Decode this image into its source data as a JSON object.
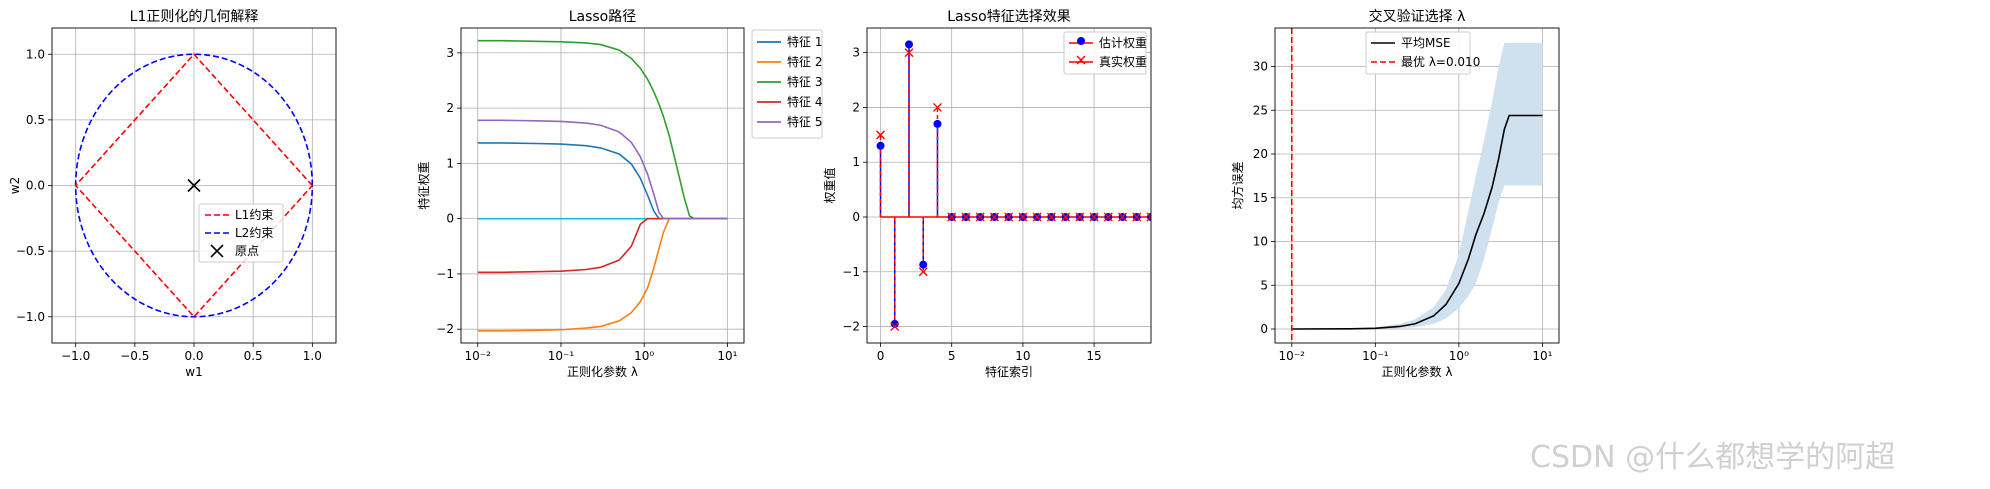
{
  "colors": {
    "tab_blue": "#1f77b4",
    "tab_orange": "#ff7f0e",
    "tab_green": "#2ca02c",
    "tab_red": "#d62728",
    "tab_purple": "#9467bd",
    "tab_cyan": "#17becf",
    "red": "#ff0000",
    "blue": "#0000ff",
    "black": "#000000",
    "band": "#cfe0ee",
    "grid": "#b0b0b0"
  },
  "watermark": "CSDN @什么都想学的阿超",
  "chart_data": [
    {
      "type": "line",
      "title": "L1正则化的几何解释",
      "xlabel": "w1",
      "ylabel": "w2",
      "xlim": [
        -1.2,
        1.2
      ],
      "ylim": [
        -1.2,
        1.2
      ],
      "xticks": [
        -1.0,
        -0.5,
        0.0,
        0.5,
        1.0
      ],
      "xtick_labels": [
        "−1.0",
        "−0.5",
        "0.0",
        "0.5",
        "1.0"
      ],
      "yticks": [
        -1.0,
        -0.5,
        0.0,
        0.5,
        1.0
      ],
      "ytick_labels": [
        "−1.0",
        "−0.5",
        "0.0",
        "0.5",
        "1.0"
      ],
      "grid": true,
      "legend": "center",
      "series": [
        {
          "name": "L1约束",
          "style": "dashed",
          "color": "#ff0000",
          "shape": "diamond",
          "radius": 1.0
        },
        {
          "name": "L2约束",
          "style": "dashed",
          "color": "#0000ff",
          "shape": "circle",
          "radius": 1.0
        },
        {
          "name": "原点",
          "style": "marker-x",
          "color": "#000000",
          "x": [
            0
          ],
          "y": [
            0
          ]
        }
      ]
    },
    {
      "type": "line",
      "title": "Lasso路径",
      "xlabel": "正则化参数 λ",
      "ylabel": "特征权重",
      "xscale": "log",
      "xlim": [
        0.0063,
        15.8
      ],
      "ylim": [
        -2.25,
        3.45
      ],
      "xticks": [
        0.01,
        0.1,
        1,
        10
      ],
      "xtick_labels": [
        "10⁻²",
        "10⁻¹",
        "10⁰",
        "10¹"
      ],
      "yticks": [
        -2,
        -1,
        0,
        1,
        2,
        3
      ],
      "ytick_labels": [
        "−2",
        "−1",
        "0",
        "1",
        "2",
        "3"
      ],
      "grid": true,
      "legend": "upper-right outside",
      "x": [
        0.01,
        0.02,
        0.05,
        0.1,
        0.2,
        0.3,
        0.5,
        0.7,
        0.9,
        1.1,
        1.3,
        1.5,
        1.7,
        2.0,
        2.5,
        3.0,
        3.5,
        4.0,
        5.0,
        7.0,
        10.0
      ],
      "series": [
        {
          "name": "特征 1",
          "color": "#1f77b4",
          "values": [
            1.37,
            1.37,
            1.36,
            1.35,
            1.32,
            1.28,
            1.17,
            0.99,
            0.73,
            0.42,
            0.14,
            0,
            0,
            0,
            0,
            0,
            0,
            0,
            0,
            0,
            0
          ]
        },
        {
          "name": "特征 2",
          "color": "#ff7f0e",
          "values": [
            -2.03,
            -2.03,
            -2.02,
            -2.01,
            -1.98,
            -1.95,
            -1.85,
            -1.7,
            -1.5,
            -1.25,
            -0.9,
            -0.55,
            -0.25,
            0,
            0,
            0,
            0,
            0,
            0,
            0,
            0
          ]
        },
        {
          "name": "特征 3",
          "color": "#2ca02c",
          "values": [
            3.22,
            3.22,
            3.21,
            3.2,
            3.18,
            3.15,
            3.05,
            2.9,
            2.72,
            2.52,
            2.3,
            2.08,
            1.85,
            1.5,
            0.9,
            0.4,
            0.05,
            0,
            0,
            0,
            0
          ]
        },
        {
          "name": "特征 4",
          "color": "#d62728",
          "values": [
            -0.97,
            -0.97,
            -0.96,
            -0.95,
            -0.92,
            -0.88,
            -0.75,
            -0.5,
            -0.1,
            0,
            0,
            0,
            0,
            0,
            0,
            0,
            0,
            0,
            0,
            0,
            0
          ]
        },
        {
          "name": "特征 5",
          "color": "#9467bd",
          "values": [
            1.78,
            1.78,
            1.77,
            1.76,
            1.73,
            1.69,
            1.57,
            1.38,
            1.12,
            0.8,
            0.45,
            0.12,
            0,
            0,
            0,
            0,
            0,
            0,
            0,
            0,
            0
          ]
        }
      ],
      "other_features_zero_color": "#17becf"
    },
    {
      "type": "stem",
      "title": "Lasso特征选择效果",
      "xlabel": "特征索引",
      "ylabel": "权重值",
      "xlim": [
        -0.95,
        19.0
      ],
      "ylim": [
        -2.3,
        3.45
      ],
      "xticks": [
        0,
        5,
        10,
        15
      ],
      "xtick_labels": [
        "0",
        "5",
        "10",
        "15"
      ],
      "yticks": [
        -2,
        -1,
        0,
        1,
        2,
        3
      ],
      "ytick_labels": [
        "−2",
        "−1",
        "0",
        "1",
        "2",
        "3"
      ],
      "grid": true,
      "legend": "upper-right",
      "x": [
        0,
        1,
        2,
        3,
        4,
        5,
        6,
        7,
        8,
        9,
        10,
        11,
        12,
        13,
        14,
        15,
        16,
        17,
        18,
        19
      ],
      "series": [
        {
          "name": "估计权重",
          "color": "#0000ff",
          "marker": "o",
          "values": [
            1.3,
            -1.95,
            3.15,
            -0.87,
            1.7,
            0,
            0,
            0,
            0,
            0,
            0,
            0,
            0,
            0,
            0,
            0,
            0,
            0,
            0,
            0
          ]
        },
        {
          "name": "真实权重",
          "color": "#ff0000",
          "marker": "x",
          "values": [
            1.5,
            -2.0,
            3.0,
            -1.0,
            2.0,
            0,
            0,
            0,
            0,
            0,
            0,
            0,
            0,
            0,
            0,
            0,
            0,
            0,
            0,
            0
          ]
        }
      ]
    },
    {
      "type": "line",
      "title": "交叉验证选择 λ",
      "xlabel": "正则化参数 λ",
      "ylabel": "均方误差",
      "xscale": "log",
      "xlim": [
        0.0063,
        15.8
      ],
      "ylim": [
        -1.6,
        34.4
      ],
      "xticks": [
        0.01,
        0.1,
        1,
        10
      ],
      "xtick_labels": [
        "10⁻²",
        "10⁻¹",
        "10⁰",
        "10¹"
      ],
      "yticks": [
        0,
        5,
        10,
        15,
        20,
        25,
        30
      ],
      "ytick_labels": [
        "0",
        "5",
        "10",
        "15",
        "20",
        "25",
        "30"
      ],
      "grid": true,
      "legend": "upper-center",
      "x": [
        0.01,
        0.05,
        0.1,
        0.2,
        0.3,
        0.5,
        0.7,
        1.0,
        1.3,
        1.6,
        2.0,
        2.5,
        3.0,
        3.5,
        4.0,
        5.0,
        7.0,
        10.0
      ],
      "series": [
        {
          "name": "平均MSE",
          "color": "#000000",
          "values": [
            0.0,
            0.02,
            0.08,
            0.3,
            0.6,
            1.5,
            2.8,
            5.2,
            8.0,
            10.8,
            13.2,
            16.2,
            19.5,
            22.8,
            24.4,
            24.4,
            24.4,
            24.4
          ]
        },
        {
          "name": "最优 λ=0.010",
          "color": "#ff0000",
          "style": "dashed-vertical",
          "x_value": 0.01
        }
      ],
      "band": {
        "lower": [
          0.0,
          0.0,
          0.0,
          0.1,
          0.2,
          0.6,
          1.2,
          2.4,
          3.8,
          5.2,
          8.0,
          11.5,
          14.5,
          16.4,
          16.4,
          16.4,
          16.4,
          16.4
        ],
        "upper": [
          0.0,
          0.05,
          0.2,
          0.6,
          1.1,
          2.5,
          4.5,
          8.5,
          13.5,
          17.5,
          21.5,
          26.0,
          30.0,
          32.7,
          32.7,
          32.7,
          32.7,
          32.7
        ]
      }
    }
  ]
}
